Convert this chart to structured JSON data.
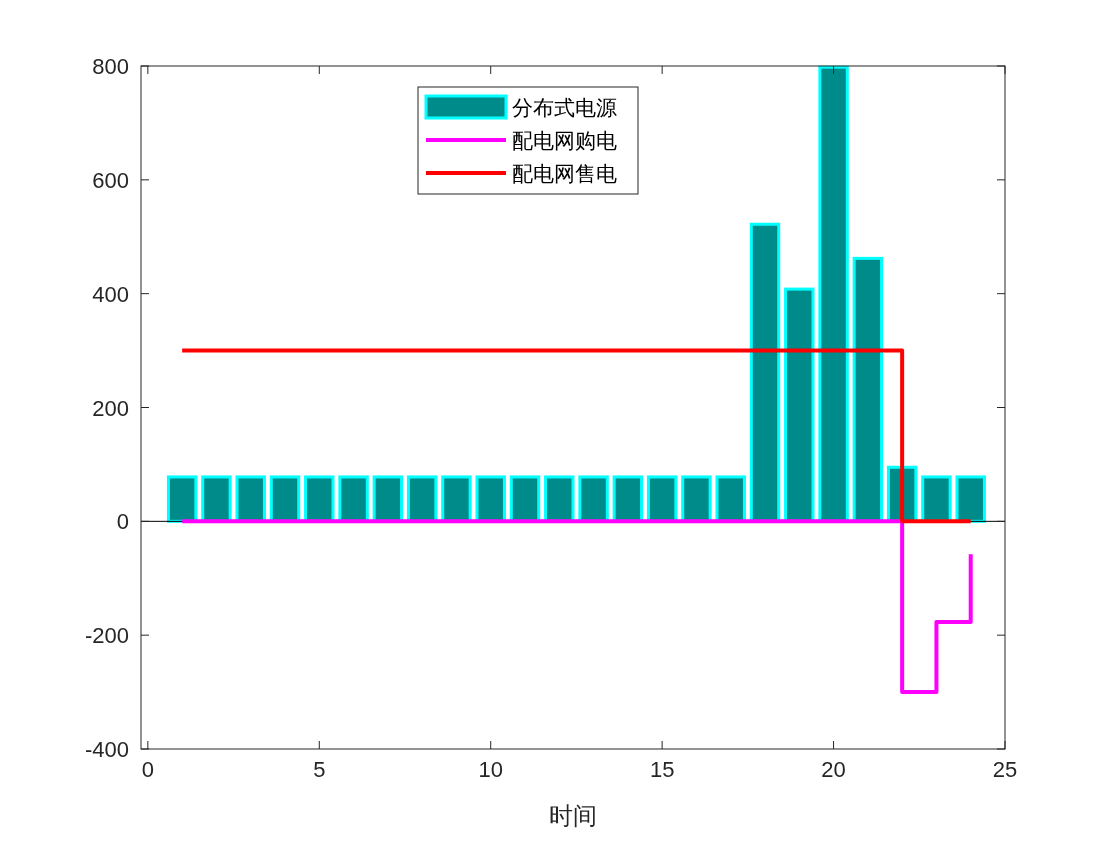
{
  "chart_data": {
    "type": "bar",
    "xlabel": "时间",
    "x": [
      1,
      2,
      3,
      4,
      5,
      6,
      7,
      8,
      9,
      10,
      11,
      12,
      13,
      14,
      15,
      16,
      17,
      18,
      19,
      20,
      21,
      22,
      23,
      24
    ],
    "series": [
      {
        "name": "分布式电源",
        "color": "#008b8b",
        "values": [
          78,
          78,
          78,
          78,
          78,
          78,
          78,
          78,
          78,
          78,
          78,
          78,
          78,
          78,
          78,
          78,
          78,
          522,
          408,
          798,
          462,
          95,
          78,
          78
        ]
      },
      {
        "name": "配电网购电",
        "type": "step",
        "color": "#ff00ff",
        "values": [
          0,
          0,
          0,
          0,
          0,
          0,
          0,
          0,
          0,
          0,
          0,
          0,
          0,
          0,
          0,
          0,
          0,
          0,
          0,
          0,
          0,
          -300,
          -177,
          -58
        ]
      },
      {
        "name": "配电网售电",
        "type": "step",
        "color": "#ff0000",
        "values": [
          300,
          300,
          300,
          300,
          300,
          300,
          300,
          300,
          300,
          300,
          300,
          300,
          300,
          300,
          300,
          300,
          300,
          300,
          300,
          300,
          300,
          0,
          0,
          0
        ]
      }
    ],
    "xlim": [
      -0.2,
      25
    ],
    "xticks": [
      0,
      5,
      10,
      15,
      20,
      25
    ],
    "ylim": [
      -400,
      800
    ],
    "yticks": [
      -400,
      -200,
      0,
      200,
      400,
      600,
      800
    ],
    "legend": "top"
  }
}
